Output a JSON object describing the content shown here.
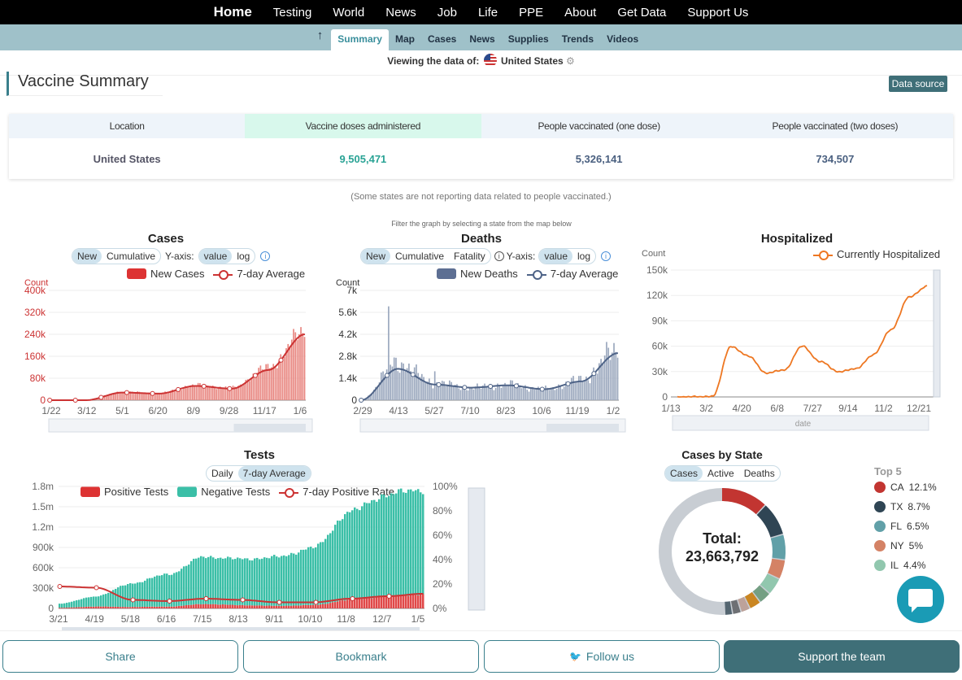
{
  "topnav": {
    "items": [
      "Home",
      "Testing",
      "World",
      "News",
      "Job",
      "Life",
      "PPE",
      "About",
      "Get Data",
      "Support Us"
    ]
  },
  "subnav": {
    "up_icon": "arrow-up-icon",
    "tabs": [
      "Summary",
      "Map",
      "Cases",
      "News",
      "Supplies",
      "Trends",
      "Videos"
    ],
    "active": "Summary"
  },
  "viewing": {
    "label": "Viewing the data of:",
    "country": "United States"
  },
  "vaccine": {
    "title": "Vaccine Summary",
    "data_source": "Data source",
    "headers": [
      "Location",
      "Vaccine doses administered",
      "People vaccinated (one dose)",
      "People vaccinated (two doses)"
    ],
    "row": [
      "United States",
      "9,505,471",
      "5,326,141",
      "734,507"
    ],
    "note": "(Some states are not reporting data related to people vaccinated.)"
  },
  "filter_note": "Filter the graph by selecting a state from the map below",
  "cases_chart": {
    "title": "Cases",
    "modes": [
      "New",
      "Cumulative"
    ],
    "yaxis_label": "Y-axis:",
    "scales": [
      "value",
      "log"
    ],
    "legend": [
      "New Cases",
      "7-day Average"
    ],
    "ylabel": "Count",
    "yticks": [
      "400k",
      "320k",
      "240k",
      "160k",
      "80k",
      "0"
    ],
    "xticks": [
      "1/22",
      "3/12",
      "5/1",
      "6/20",
      "8/9",
      "9/28",
      "11/17",
      "1/6"
    ],
    "colors": {
      "bar": "#e8857f",
      "line": "#cc3333"
    }
  },
  "deaths_chart": {
    "title": "Deaths",
    "modes": [
      "New",
      "Cumulative",
      "Fatality"
    ],
    "yaxis_label": "Y-axis:",
    "scales": [
      "value",
      "log"
    ],
    "legend": [
      "New Deaths",
      "7-day Average"
    ],
    "ylabel": "Count",
    "yticks": [
      "7k",
      "5.6k",
      "4.2k",
      "2.8k",
      "1.4k",
      "0"
    ],
    "xticks": [
      "2/29",
      "4/13",
      "5/27",
      "7/10",
      "8/23",
      "10/6",
      "11/19",
      "1/2"
    ],
    "colors": {
      "bar": "#9aa7bd",
      "line": "#4e6387"
    }
  },
  "hosp_chart": {
    "title": "Hospitalized",
    "legend": [
      "Currently Hospitalized"
    ],
    "ylabel": "Count",
    "yticks": [
      "150k",
      "120k",
      "90k",
      "60k",
      "30k",
      "0"
    ],
    "xticks": [
      "1/13",
      "3/2",
      "4/20",
      "6/8",
      "7/27",
      "9/14",
      "11/2",
      "12/21"
    ],
    "xlabel": "date",
    "colors": {
      "line": "#ee7722"
    }
  },
  "tests_chart": {
    "title": "Tests",
    "modes": [
      "Daily",
      "7-day Average"
    ],
    "legend": [
      "Positive Tests",
      "Negative Tests",
      "7-day Positive Rate"
    ],
    "yticks": [
      "1.8m",
      "1.5m",
      "1.2m",
      "900k",
      "600k",
      "300k",
      "0"
    ],
    "y2ticks": [
      "100%",
      "80%",
      "60%",
      "40%",
      "20%",
      "0%"
    ],
    "xticks": [
      "3/21",
      "4/19",
      "5/18",
      "6/16",
      "7/15",
      "8/13",
      "9/11",
      "10/10",
      "11/8",
      "12/7",
      "1/5"
    ],
    "colors": {
      "positive": "#e04848",
      "negative": "#3bbfa7",
      "rate": "#cc3333"
    }
  },
  "state_chart": {
    "title": "Cases by State",
    "modes": [
      "Cases",
      "Active",
      "Deaths"
    ],
    "total_label": "Total:",
    "total_value": "23,663,792",
    "top_label": "Top 5",
    "top": [
      {
        "state": "CA",
        "pct": "12.1%",
        "color": "#c23531"
      },
      {
        "state": "TX",
        "pct": "8.7%",
        "color": "#2f4554"
      },
      {
        "state": "FL",
        "pct": "6.5%",
        "color": "#61a0a8"
      },
      {
        "state": "NY",
        "pct": "5%",
        "color": "#d48265"
      },
      {
        "state": "IL",
        "pct": "4.4%",
        "color": "#91c7ae"
      }
    ]
  },
  "bottom": {
    "share": "Share",
    "bookmark": "Bookmark",
    "follow": "Follow us",
    "support": "Support the team"
  },
  "chart_data": [
    {
      "type": "bar",
      "title": "Cases",
      "ylabel": "Count",
      "ylim": [
        0,
        400000
      ],
      "x": [
        "1/22",
        "3/12",
        "5/1",
        "6/20",
        "8/9",
        "9/28",
        "11/17",
        "1/6"
      ],
      "series": [
        {
          "name": "New Cases",
          "values": [
            0,
            0,
            30000,
            25000,
            55000,
            45000,
            120000,
            250000
          ]
        },
        {
          "name": "7-day Average",
          "values": [
            0,
            0,
            28000,
            24000,
            52000,
            42000,
            110000,
            240000
          ]
        }
      ]
    },
    {
      "type": "bar",
      "title": "Deaths",
      "ylabel": "Count",
      "ylim": [
        0,
        7000
      ],
      "x": [
        "2/29",
        "4/13",
        "5/27",
        "7/10",
        "8/23",
        "10/6",
        "11/19",
        "1/2"
      ],
      "series": [
        {
          "name": "New Deaths",
          "values": [
            0,
            2400,
            1100,
            800,
            1000,
            700,
            1300,
            3200
          ]
        },
        {
          "name": "7-day Average",
          "values": [
            0,
            2000,
            1000,
            800,
            950,
            700,
            1200,
            3000
          ]
        }
      ]
    },
    {
      "type": "line",
      "title": "Hospitalized",
      "ylabel": "Count",
      "xlabel": "date",
      "ylim": [
        0,
        150000
      ],
      "x": [
        "1/13",
        "3/2",
        "3/16",
        "4/20",
        "5/20",
        "6/8",
        "6/20",
        "7/27",
        "8/20",
        "9/14",
        "10/10",
        "11/2",
        "11/20",
        "12/21",
        "1/6"
      ],
      "series": [
        {
          "name": "Currently Hospitalized",
          "values": [
            0,
            0,
            1000,
            60000,
            48000,
            28000,
            32000,
            60000,
            42000,
            30000,
            33000,
            50000,
            80000,
            118000,
            131000
          ]
        }
      ]
    },
    {
      "type": "bar",
      "title": "Tests",
      "ylim": [
        0,
        1800000
      ],
      "x": [
        "3/21",
        "4/19",
        "5/18",
        "6/16",
        "7/15",
        "8/13",
        "9/11",
        "10/10",
        "11/8",
        "12/7",
        "1/5"
      ],
      "series": [
        {
          "name": "Positive Tests",
          "values": [
            10000,
            28000,
            22000,
            28000,
            65000,
            48000,
            38000,
            50000,
            130000,
            180000,
            210000
          ]
        },
        {
          "name": "Negative Tests",
          "values": [
            60000,
            150000,
            350000,
            480000,
            700000,
            680000,
            720000,
            850000,
            1300000,
            1500000,
            1550000
          ]
        },
        {
          "name": "7-day Positive Rate",
          "values": [
            18,
            17,
            7,
            6,
            8,
            7,
            5,
            5,
            8,
            10,
            12
          ]
        }
      ]
    },
    {
      "type": "pie",
      "title": "Cases by State",
      "categories": [
        "CA",
        "TX",
        "FL",
        "NY",
        "IL"
      ],
      "values": [
        12.1,
        8.7,
        6.5,
        5,
        4.4
      ]
    }
  ]
}
